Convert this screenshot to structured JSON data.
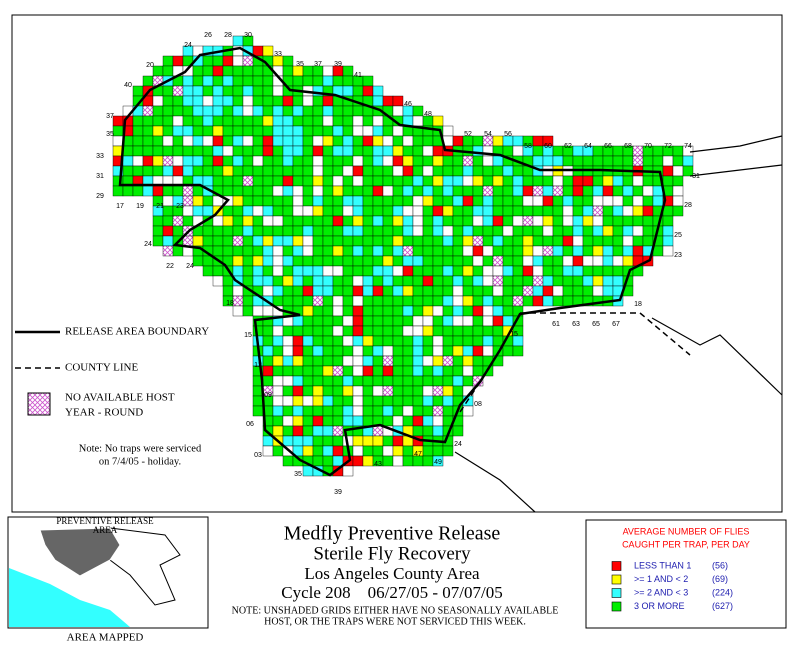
{
  "map": {
    "grid_labels": [
      "20",
      "24",
      "26",
      "28",
      "30",
      "33",
      "35",
      "37",
      "39",
      "41",
      "46",
      "48",
      "52",
      "54",
      "56",
      "58",
      "60",
      "62",
      "64",
      "66",
      "68",
      "70",
      "72",
      "74",
      "40",
      "37",
      "35",
      "33",
      "31",
      "29",
      "17",
      "19",
      "21",
      "23",
      "24",
      "22",
      "24",
      "18",
      "15",
      "12",
      "09",
      "06",
      "03",
      "35",
      "39",
      "43",
      "47",
      "49",
      "24",
      "08",
      "15",
      "61",
      "63",
      "65",
      "67",
      "18",
      "23",
      "25",
      "28",
      "31"
    ],
    "boundary_label": "RELEASE AREA BOUNDARY",
    "county_label": "COUNTY LINE",
    "no_host_label": [
      "NO AVAILABLE HOST",
      "YEAR - ROUND"
    ],
    "note": [
      "Note: No traps were serviced",
      "on 7/4/05 - holiday."
    ]
  },
  "inset": {
    "label": [
      "PREVENTIVE RELEASE",
      "AREA"
    ],
    "caption": "AREA MAPPED"
  },
  "title": {
    "lines": [
      "Medfly Preventive Release",
      "Sterile Fly Recovery",
      "Los Angeles County Area",
      "Cycle 208    06/27/05 - 07/07/05"
    ],
    "note": [
      "NOTE: UNSHADED GRIDS EITHER HAVE NO SEASONALLY AVAILABLE",
      "HOST, OR THE TRAPS WERE NOT SERVICED THIS WEEK."
    ]
  },
  "flies_legend": {
    "title": [
      "AVERAGE NUMBER OF FLIES",
      "CAUGHT PER TRAP, PER DAY"
    ],
    "items": [
      {
        "label": "LESS THAN 1",
        "count": "(56)",
        "color": "#ff0000"
      },
      {
        "label": ">= 1 AND < 2",
        "count": "(69)",
        "color": "#ffff00"
      },
      {
        "label": ">= 2 AND < 3",
        "count": "(224)",
        "color": "#33ffff"
      },
      {
        "label": "3 OR MORE",
        "count": "(627)",
        "color": "#00ee00"
      }
    ]
  }
}
